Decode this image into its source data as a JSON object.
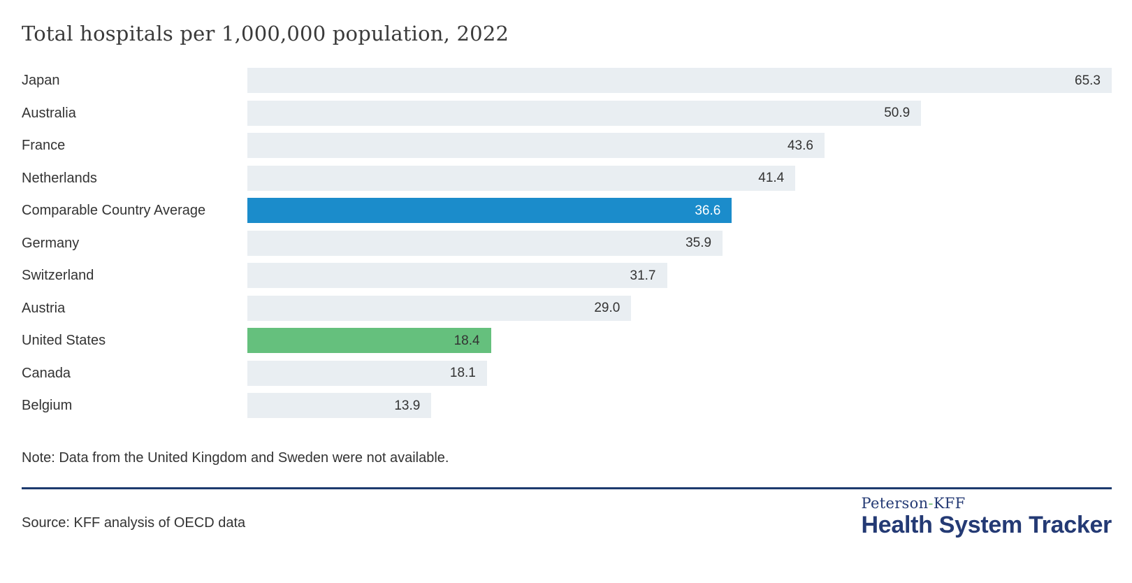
{
  "title": "Total hospitals per 1,000,000 population, 2022",
  "chart_data": {
    "type": "bar",
    "orientation": "horizontal",
    "title": "Total hospitals per 1,000,000 population, 2022",
    "xlabel": "",
    "ylabel": "",
    "xlim": [
      0,
      65.3
    ],
    "grid": false,
    "value_labels": "inside-end",
    "categories": [
      "Japan",
      "Australia",
      "France",
      "Netherlands",
      "Comparable Country Average",
      "Germany",
      "Switzerland",
      "Austria",
      "United States",
      "Canada",
      "Belgium"
    ],
    "values": [
      65.3,
      50.9,
      43.6,
      41.4,
      36.6,
      35.9,
      31.7,
      29.0,
      18.4,
      18.1,
      13.9
    ],
    "series": [
      {
        "label": "Japan",
        "value": 65.3,
        "display_value": "65.3",
        "emphasis": "default"
      },
      {
        "label": "Australia",
        "value": 50.9,
        "display_value": "50.9",
        "emphasis": "default"
      },
      {
        "label": "France",
        "value": 43.6,
        "display_value": "43.6",
        "emphasis": "default"
      },
      {
        "label": "Netherlands",
        "value": 41.4,
        "display_value": "41.4",
        "emphasis": "default"
      },
      {
        "label": "Comparable Country Average",
        "value": 36.6,
        "display_value": "36.6",
        "emphasis": "average"
      },
      {
        "label": "Germany",
        "value": 35.9,
        "display_value": "35.9",
        "emphasis": "default"
      },
      {
        "label": "Switzerland",
        "value": 31.7,
        "display_value": "31.7",
        "emphasis": "default"
      },
      {
        "label": "Austria",
        "value": 29.0,
        "display_value": "29.0",
        "emphasis": "default"
      },
      {
        "label": "United States",
        "value": 18.4,
        "display_value": "18.4",
        "emphasis": "us"
      },
      {
        "label": "Canada",
        "value": 18.1,
        "display_value": "18.1",
        "emphasis": "default"
      },
      {
        "label": "Belgium",
        "value": 13.9,
        "display_value": "13.9",
        "emphasis": "default"
      }
    ],
    "colors": {
      "bar_default": "#e9eef2",
      "bar_average": "#1b8ccb",
      "bar_us": "#65c07d",
      "value_text": "#333333",
      "value_text_on_average": "#ffffff",
      "label_text": "#333333"
    }
  },
  "note": "Note: Data from the United Kingdom and Sweden were not available.",
  "source": "Source: KFF analysis of OECD data",
  "brand": {
    "top_left": "Peterson",
    "top_hyphen": "-",
    "top_right": "KFF",
    "bottom": "Health System Tracker",
    "navy": "#243a74",
    "divider_navy": "#1d3a6e",
    "hyphen_green": "#6fbf72"
  }
}
